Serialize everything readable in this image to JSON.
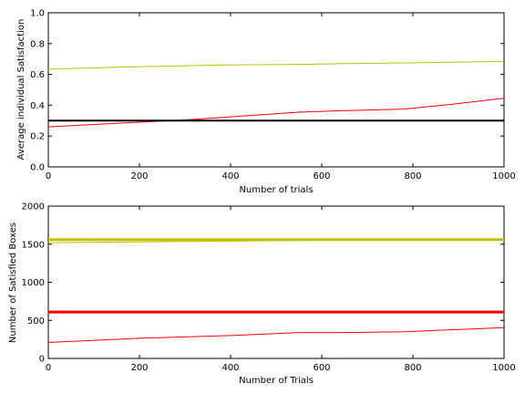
{
  "chart_data": [
    {
      "type": "line",
      "title": "",
      "xlabel": "Number of trials",
      "ylabel": "Average individual Satisfaction",
      "xlim": [
        0,
        1000
      ],
      "ylim": [
        0,
        1.0
      ],
      "xticks": [
        "0",
        "200",
        "400",
        "600",
        "800",
        "1000"
      ],
      "yticks": [
        "0.0",
        "0.2",
        "0.4",
        "0.6",
        "0.8",
        "1.0"
      ],
      "grid": false,
      "series": [
        {
          "color": "#bfbf00",
          "width": 1,
          "x": [
            0,
            200,
            400,
            550,
            650,
            800,
            1000
          ],
          "y": [
            0.635,
            0.65,
            0.662,
            0.665,
            0.67,
            0.675,
            0.685
          ]
        },
        {
          "color": "#ff0000",
          "width": 1,
          "x": [
            0,
            100,
            200,
            300,
            400,
            550,
            650,
            780,
            880,
            1000
          ],
          "y": [
            0.26,
            0.275,
            0.29,
            0.305,
            0.325,
            0.355,
            0.365,
            0.375,
            0.405,
            0.445
          ]
        },
        {
          "color": "#000000",
          "width": 2,
          "x": [
            0,
            1000
          ],
          "y": [
            0.3,
            0.3
          ]
        }
      ]
    },
    {
      "type": "line",
      "title": "",
      "xlabel": "Number of Trials",
      "ylabel": "Number of Satisfied Boxes",
      "xlim": [
        0,
        1000
      ],
      "ylim": [
        0,
        2000
      ],
      "xticks": [
        "0",
        "200",
        "400",
        "600",
        "800",
        "1000"
      ],
      "yticks": [
        "0",
        "500",
        "1000",
        "1500",
        "2000"
      ],
      "grid": false,
      "series": [
        {
          "color": "#bfbf00",
          "width": 3,
          "x": [
            0,
            1000
          ],
          "y": [
            1560,
            1560
          ]
        },
        {
          "color": "#bfbf00",
          "width": 1,
          "x": [
            0,
            200,
            400,
            550,
            800,
            1000
          ],
          "y": [
            1520,
            1530,
            1540,
            1550,
            1555,
            1560
          ]
        },
        {
          "color": "#ff0000",
          "width": 3,
          "x": [
            0,
            1000
          ],
          "y": [
            610,
            610
          ]
        },
        {
          "color": "#ff0000",
          "width": 1,
          "x": [
            0,
            200,
            400,
            550,
            650,
            780,
            900,
            1000
          ],
          "y": [
            210,
            265,
            300,
            340,
            340,
            350,
            380,
            405
          ]
        }
      ]
    }
  ]
}
